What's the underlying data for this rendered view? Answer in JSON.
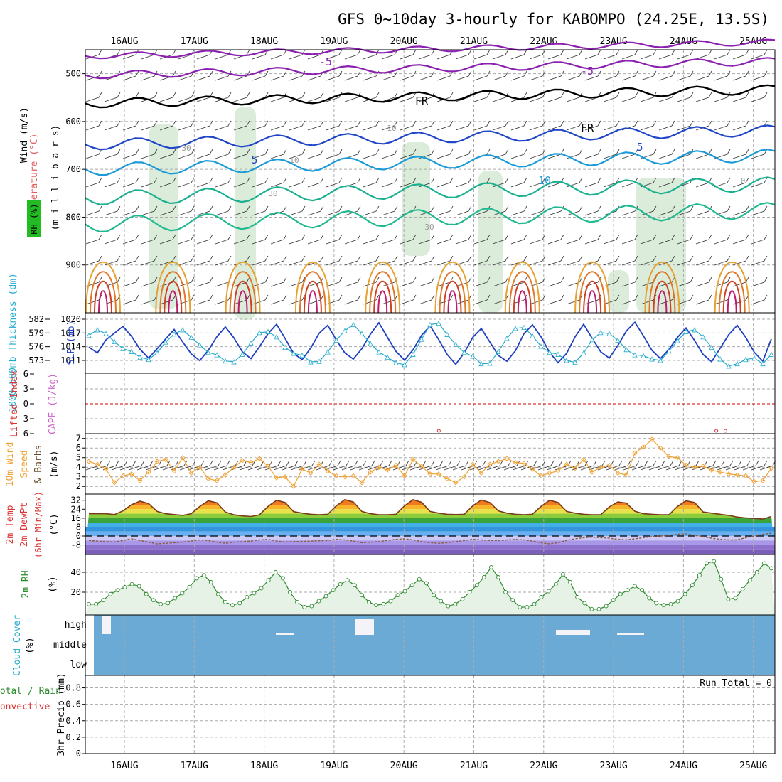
{
  "header": {
    "title": "GFS 0~10day 3-hourly for KABOMPO (24.25E, 13.5S)"
  },
  "dates": [
    "16AUG",
    "17AUG",
    "18AUG",
    "19AUG",
    "20AUG",
    "21AUG",
    "22AUG",
    "23AUG",
    "24AUG",
    "25AUG"
  ],
  "colors": {
    "grid": "#aaaaaa",
    "slp": "#1f3fbf",
    "thickness": "#22aacc",
    "lifted": "#dd3333",
    "cape": "#cc66cc",
    "wind10m": "#f0a030",
    "barb": "#6b4a2a",
    "rh": "#2e8b2e",
    "rh_fill": "#8fc78f",
    "cloud": "#6aaad4",
    "cloud_gap": "#f4f4f8",
    "temp_line": "#7a3a1a",
    "dew_line": "#8a5a3a"
  },
  "chart_data": [
    {
      "id": "upper-air",
      "type": "heatmap",
      "ylabel_parts": [
        "Wind (m/s)",
        "Temperature (°C)",
        "RH (%)"
      ],
      "yunit_label": "(m i l l i b a r s)",
      "y_ticks": [
        500,
        600,
        700,
        800,
        900
      ],
      "ylim": [
        1000,
        450
      ],
      "contour_labels": [
        "-5",
        "-5",
        "FR",
        "FR",
        "5",
        "5",
        "10",
        "30",
        "30",
        "30",
        "10",
        "10",
        "0"
      ],
      "isotherms": [
        {
          "name": "-5C upper",
          "color": "#8a1fb0",
          "level": 463
        },
        {
          "name": "-5C lower",
          "color": "#8a1fb0",
          "level": 503
        },
        {
          "name": "0C freezing",
          "color": "#000000",
          "level": 562
        },
        {
          "name": "5C",
          "color": "#1f45c8",
          "level": 648
        },
        {
          "name": "10C",
          "color": "#1a9ad8",
          "level": 700
        },
        {
          "name": "15C",
          "color": "#1ab08f",
          "level": 760
        },
        {
          "name": "20C",
          "color": "#20b890",
          "level": 815
        }
      ]
    },
    {
      "id": "slp-thickness",
      "type": "line",
      "ylabel_left": "1000-500mb Thickness (dm)",
      "ylabel_right": "SLP (mb)",
      "thickness_ticks": [
        573,
        576,
        579,
        582
      ],
      "slp_ticks": [
        1011,
        1014,
        1017,
        1020
      ],
      "thickness_values": [
        576.2,
        575.1,
        577.6,
        578.9,
        580.2,
        578.3,
        575.8,
        574.1,
        575.9,
        577.8,
        579.6,
        577.2,
        574.9,
        573.6,
        575.6,
        578.2,
        580.1,
        578.0,
        575.3,
        574.0,
        576.3,
        578.8,
        580.6,
        577.9,
        575.0,
        573.8,
        576.0,
        578.9,
        580.4,
        577.6,
        575.1,
        573.9,
        575.9,
        578.7,
        580.9,
        578.1,
        575.4,
        573.7,
        575.7,
        578.5,
        580.3,
        577.7,
        574.8,
        572.9,
        575.1,
        578.1,
        579.8,
        577.2,
        574.6,
        573.5,
        575.5,
        578.8,
        580.5,
        578.2,
        575.2,
        573.2,
        575.0,
        578.2,
        580.6,
        577.9,
        575.3,
        574.1,
        576.5,
        579.3,
        581.0,
        578.4,
        575.6,
        574.0,
        575.8,
        578.1,
        579.9,
        577.5,
        574.8,
        573.4,
        576.0,
        578.6,
        580.4,
        578.1,
        575.2,
        573.5,
        577.8
      ],
      "slp_values": [
        1016.6,
        1017.8,
        1017.0,
        1015.3,
        1013.8,
        1013.2,
        1012.0,
        1011.5,
        1012.9,
        1015.2,
        1016.9,
        1017.8,
        1016.2,
        1014.6,
        1013.0,
        1012.5,
        1011.2,
        1011.0,
        1012.6,
        1015.0,
        1017.2,
        1017.4,
        1016.3,
        1014.1,
        1012.8,
        1012.4,
        1011.0,
        1011.1,
        1013.1,
        1015.6,
        1017.6,
        1018.9,
        1017.0,
        1014.9,
        1013.1,
        1012.0,
        1010.8,
        1010.4,
        1012.6,
        1015.8,
        1018.9,
        1019.2,
        1016.8,
        1014.7,
        1013.0,
        1012.2,
        1010.6,
        1010.7,
        1013.2,
        1016.0,
        1018.1,
        1018.3,
        1016.5,
        1014.3,
        1013.0,
        1012.6,
        1011.3,
        1010.9,
        1012.9,
        1015.7,
        1017.2,
        1017.0,
        1015.6,
        1013.6,
        1012.5,
        1012.3,
        1011.6,
        1011.3,
        1013.3,
        1015.5,
        1017.4,
        1017.8,
        1016.3,
        1014.1,
        1011.6,
        1010.1,
        1010.6,
        1011.5,
        1011.8,
        1010.6,
        1012.6
      ]
    },
    {
      "id": "stability",
      "type": "line",
      "ylabel_left": "Lifted Index",
      "ylabel_right": "CAPE (J/kg)",
      "li_ticks": [
        -6,
        -3,
        0,
        3,
        6
      ],
      "li_zero": 0,
      "cape_ticks": [
        7
      ],
      "cape_marks": [
        {
          "x_day": 4.9,
          "value": 1
        },
        {
          "x_day": 8.87,
          "value": 2
        },
        {
          "x_day": 9.0,
          "value": 3
        }
      ]
    },
    {
      "id": "wind-10m",
      "type": "line",
      "ylabel": "10m Wind Speed & Barbs (m/s)",
      "ylim": [
        1.5,
        7.2
      ],
      "y_ticks": [
        2,
        3,
        4,
        5,
        6,
        7
      ],
      "values": [
        4.6,
        4.3,
        3.8,
        2.4,
        3.1,
        3.3,
        2.6,
        3.5,
        4.6,
        4.8,
        3.6,
        5.0,
        3.4,
        4.0,
        2.8,
        2.6,
        3.2,
        4.0,
        4.7,
        4.5,
        4.9,
        4.1,
        2.9,
        3.0,
        2.0,
        3.8,
        3.4,
        4.3,
        3.6,
        3.1,
        3.0,
        3.1,
        2.4,
        3.5,
        4.0,
        3.7,
        4.2,
        3.1,
        4.8,
        4.1,
        3.3,
        3.3,
        2.8,
        2.4,
        3.0,
        4.3,
        3.4,
        4.3,
        4.6,
        4.9,
        4.5,
        4.4,
        3.8,
        3.1,
        3.4,
        3.6,
        4.3,
        3.9,
        4.8,
        3.5,
        4.0,
        4.2,
        3.4,
        3.2,
        5.5,
        6.1,
        6.9,
        6.0,
        5.1,
        5.0,
        4.2,
        4.0,
        4.1,
        3.7,
        3.5,
        3.3,
        3.2,
        3.1,
        2.5,
        2.6,
        3.9
      ]
    },
    {
      "id": "temperature",
      "type": "area",
      "ylabel": "2m Temp 2m DewPt (6hr Min/Max) (°C)",
      "ylim": [
        -14,
        35
      ],
      "y_ticks": [
        -8,
        0,
        8,
        16,
        24,
        32
      ],
      "temp_values": [
        20.0,
        20.0,
        20.0,
        19.2,
        22.5,
        28.0,
        31.2,
        29.0,
        22.0,
        20.0,
        19.2,
        18.5,
        20.0,
        26.5,
        31.5,
        29.8,
        21.5,
        19.0,
        18.0,
        17.5,
        19.0,
        26.5,
        32.0,
        30.0,
        21.8,
        20.5,
        19.5,
        19.0,
        19.5,
        27.0,
        32.5,
        30.5,
        22.0,
        20.0,
        19.0,
        19.0,
        19.5,
        27.0,
        32.5,
        30.2,
        22.0,
        20.5,
        19.5,
        19.2,
        19.5,
        27.0,
        32.2,
        30.0,
        22.5,
        20.5,
        19.5,
        19.0,
        19.5,
        26.5,
        32.0,
        30.0,
        22.0,
        20.5,
        19.5,
        19.0,
        19.0,
        26.0,
        30.5,
        29.5,
        22.2,
        20.0,
        19.5,
        19.0,
        19.0,
        26.5,
        31.5,
        30.0,
        21.5,
        20.5,
        19.5,
        18.5,
        17.0,
        16.2,
        15.8,
        15.2,
        17.5
      ],
      "dewpoint_values": [
        -4.0,
        -4.5,
        -5.0,
        -5.5,
        -4.0,
        -2.5,
        -4.0,
        -5.5,
        -7.0,
        -6.5,
        -6.0,
        -5.5,
        -4.5,
        -3.5,
        -4.0,
        -5.5,
        -6.5,
        -5.5,
        -5.0,
        -4.5,
        -3.5,
        -3.0,
        -4.5,
        -5.5,
        -5.0,
        -4.8,
        -4.5,
        -4.2,
        -4.0,
        -3.0,
        -3.5,
        -4.5,
        -6.0,
        -5.5,
        -5.0,
        -4.0,
        -3.0,
        -2.5,
        -3.5,
        -5.0,
        -6.0,
        -6.5,
        -6.0,
        -5.0,
        -4.0,
        -3.0,
        -3.5,
        -4.0,
        -4.0,
        -3.5,
        -3.0,
        -3.5,
        -4.5,
        -6.0,
        -7.0,
        -6.0,
        -4.0,
        -2.5,
        -1.5,
        -1.0,
        -1.5,
        -2.0,
        -3.0,
        -3.5,
        -2.5,
        -1.5,
        -0.5,
        0.0,
        0.5,
        1.5,
        2.0,
        0.5,
        -0.5,
        -2.0,
        -3.0,
        -3.5,
        -3.5,
        -1.5,
        0.0,
        1.5,
        2.5
      ]
    },
    {
      "id": "relative-humidity",
      "type": "area",
      "ylabel": "2m RH (%)",
      "ylim": [
        0,
        55
      ],
      "y_ticks": [
        20,
        40
      ],
      "values": [
        8,
        8,
        12,
        18,
        22,
        25,
        28,
        26,
        18,
        12,
        8,
        9,
        14,
        19,
        25,
        34,
        37,
        30,
        18,
        10,
        7,
        9,
        15,
        19,
        24,
        32,
        40,
        34,
        20,
        10,
        5,
        6,
        11,
        16,
        22,
        28,
        32,
        27,
        17,
        10,
        7,
        8,
        11,
        17,
        21,
        27,
        33,
        29,
        17,
        11,
        6,
        8,
        13,
        20,
        27,
        35,
        45,
        35,
        20,
        12,
        5,
        5,
        8,
        15,
        21,
        28,
        38,
        30,
        15,
        9,
        3,
        3,
        6,
        12,
        18,
        22,
        26,
        22,
        14,
        9,
        7,
        8,
        11,
        18,
        27,
        37,
        49,
        51,
        33,
        13,
        14,
        23,
        32,
        40,
        49,
        44
      ]
    },
    {
      "id": "cloud-cover",
      "type": "bar",
      "ylabel": "Cloud Cover (%)",
      "y_ticks": [
        "high",
        "middle",
        "low"
      ],
      "gaps": [
        {
          "x_day": 0.2,
          "layer": "high",
          "value": 90
        },
        {
          "x_day": 3.45,
          "layer": "high",
          "value": 60
        },
        {
          "x_day": 7.35,
          "layer": "high",
          "value": 10
        }
      ]
    },
    {
      "id": "precipitation",
      "type": "bar",
      "ylabel": "3hr Precip (mm)",
      "ylabel_colored": [
        "Total / Rain",
        "Convective"
      ],
      "run_total_label": "Run Total = 0",
      "ylim": [
        0,
        0.9
      ],
      "y_ticks": [
        0,
        0.2,
        0.4,
        0.6,
        0.8
      ],
      "values": []
    }
  ]
}
